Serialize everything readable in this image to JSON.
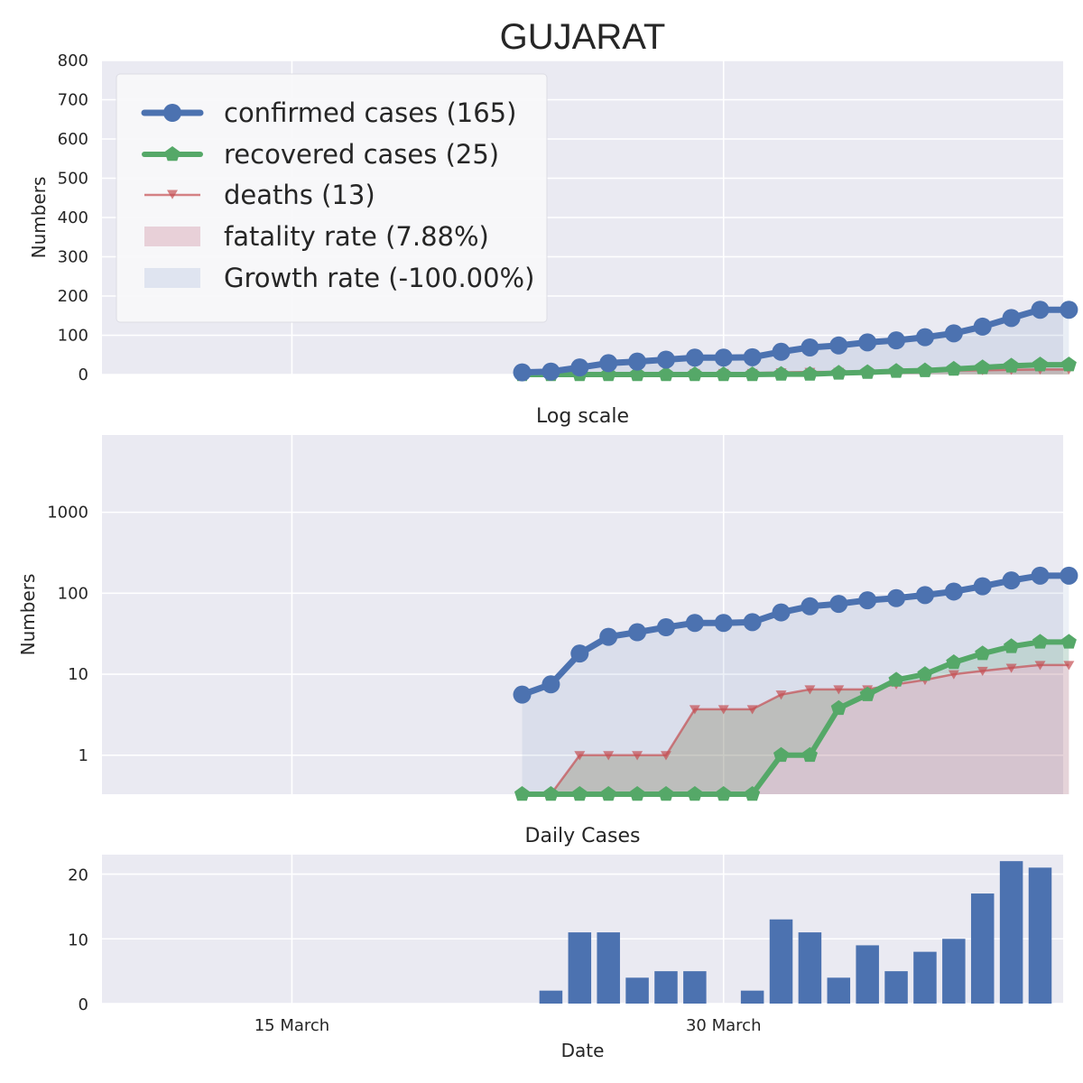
{
  "chart_data": [
    {
      "type": "line",
      "title": "GUJARAT",
      "ylabel": "Numbers",
      "ylim": [
        0,
        800
      ],
      "yticks": [
        0,
        100,
        200,
        300,
        400,
        500,
        600,
        700,
        800
      ],
      "grid": true,
      "legend_position": "top-left",
      "x": [
        -3,
        -2,
        -1,
        0,
        1,
        2,
        3,
        4,
        5,
        6,
        7,
        8,
        9,
        10,
        11,
        12,
        13,
        14,
        15,
        16
      ],
      "series": [
        {
          "name": "confirmed cases (165)",
          "color": "#4c72b0",
          "marker": "circle",
          "values": [
            5.6,
            7.5,
            18,
            29,
            33,
            38,
            43,
            43,
            44,
            58,
            69,
            74,
            82,
            87,
            95,
            105,
            122,
            144,
            165,
            165
          ]
        },
        {
          "name": "recovered cases (25)",
          "color": "#55a868",
          "marker": "pentagon",
          "values": [
            0,
            0,
            0,
            0,
            0,
            0,
            0,
            0,
            0,
            1,
            1,
            3.8,
            5.6,
            8.5,
            10,
            14,
            18,
            22,
            25,
            25
          ]
        },
        {
          "name": "deaths (13)",
          "color": "#c44e52",
          "marker": "triangle-down",
          "values": [
            0,
            0,
            1,
            1,
            1,
            1,
            3.7,
            3.7,
            3.7,
            5.6,
            6.5,
            6.5,
            6.5,
            7.5,
            8.5,
            10,
            11,
            12,
            13,
            13
          ]
        }
      ],
      "legend_extra": [
        {
          "name": "fatality rate (7.88%)",
          "color": "#e8d0d8"
        },
        {
          "name": "Growth rate (-100.00%)",
          "color": "#dfe4f0"
        }
      ]
    },
    {
      "type": "line",
      "title": "Log scale",
      "ylabel": "Numbers",
      "yscale": "log",
      "ylim": [
        0.33,
        9000
      ],
      "yticks": [
        1,
        10,
        100,
        1000
      ],
      "ytick_labels": [
        "1",
        "10",
        "100",
        "1000"
      ]
    },
    {
      "type": "bar",
      "title": "Daily Cases",
      "xlabel": "Date",
      "ylim": [
        0,
        23
      ],
      "yticks": [
        0,
        10,
        20
      ],
      "color": "#4c72b0",
      "x": [
        -2,
        -1,
        0,
        1,
        2,
        3,
        4,
        5,
        6,
        7,
        8,
        9,
        10,
        11,
        12,
        13,
        14,
        15
      ],
      "values": [
        2,
        11,
        11,
        4,
        5,
        5,
        0,
        2,
        13,
        11,
        4,
        9,
        5,
        8,
        10,
        17,
        22,
        21
      ]
    }
  ],
  "x_axis": {
    "xlim": [
      -17.6,
      15.8
    ],
    "ticks": [
      {
        "value": -11,
        "label": "15 March"
      },
      {
        "value": 4,
        "label": "30 March"
      }
    ]
  }
}
